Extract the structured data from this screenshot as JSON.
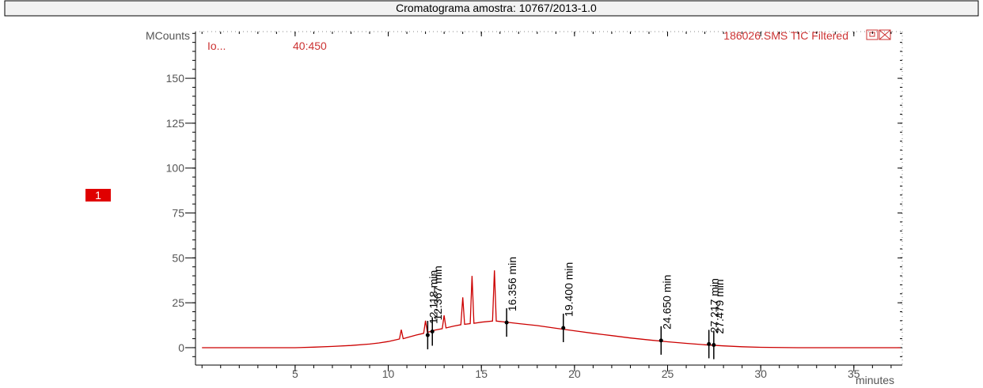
{
  "chart_data": {
    "type": "line",
    "title": "Cromatograma amostra: 10767/2013-1.0",
    "y_label": "MCounts",
    "x_label": "minutes",
    "annotations": [
      "Io...",
      "40:450",
      "186026.SMS TIC Filtered",
      "1"
    ],
    "x": [
      0,
      5,
      6,
      7,
      8,
      9,
      9.5,
      10,
      10.6,
      10.7,
      10.8,
      11,
      11.5,
      11.9,
      12,
      12.1,
      12.5,
      12.9,
      13,
      13.1,
      13.5,
      13.9,
      14,
      14.1,
      14.4,
      14.5,
      14.6,
      15,
      15.6,
      15.7,
      15.8,
      16,
      16.5,
      17,
      18,
      19,
      20,
      21,
      22,
      23,
      24,
      25,
      26,
      27,
      28,
      29,
      30,
      32,
      35,
      37.5
    ],
    "series": [
      {
        "name": "186026.SMS TIC Filtered",
        "color": "#cc0000",
        "values": [
          0,
          0,
          0.3,
          0.7,
          1.2,
          2,
          2.6,
          3.4,
          4.8,
          10,
          5,
          5.6,
          7,
          8,
          15,
          8.5,
          9.8,
          10.6,
          18,
          11,
          12,
          12.8,
          28,
          13,
          13.4,
          40,
          13.6,
          14.2,
          14.8,
          43,
          14.8,
          14.6,
          14,
          13.4,
          12.3,
          10.8,
          9.4,
          8,
          6.7,
          5.4,
          4.3,
          3.3,
          2.4,
          1.6,
          1,
          0.5,
          0.2,
          0,
          0,
          0
        ]
      }
    ],
    "peaks": [
      {
        "label": "12.118 min",
        "x": 12.118,
        "y": 7
      },
      {
        "label": "12.367 min",
        "x": 12.367,
        "y": 9
      },
      {
        "label": "16.356 min",
        "x": 16.356,
        "y": 14
      },
      {
        "label": "19.400 min",
        "x": 19.4,
        "y": 11
      },
      {
        "label": "24.650 min",
        "x": 24.65,
        "y": 4
      },
      {
        "label": "27.217 min",
        "x": 27.217,
        "y": 2
      },
      {
        "label": "27.479 min",
        "x": 27.479,
        "y": 1.5
      }
    ],
    "xlim": [
      -0.35,
      37.6
    ],
    "ylim": [
      -9.7,
      176
    ],
    "xticks": [
      5,
      10,
      15,
      20,
      25,
      30,
      35
    ],
    "yticks": [
      0,
      25,
      50,
      75,
      100,
      125,
      150
    ]
  }
}
